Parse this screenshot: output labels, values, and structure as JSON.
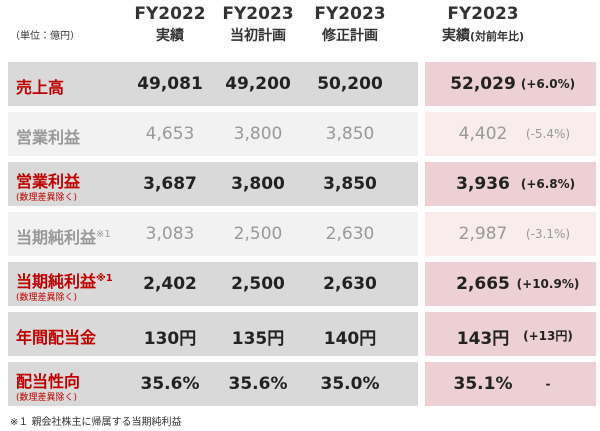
{
  "header": {
    "unit": "（単位：億円）",
    "columns": [
      {
        "line1": "FY2022",
        "line2": "実績"
      },
      {
        "line1": "FY2023",
        "line2": "当初計画"
      },
      {
        "line1": "FY2023",
        "line2": "修正計画"
      },
      {
        "line1": "FY2023",
        "line2": "実績",
        "note": "(対前年比)"
      }
    ]
  },
  "table": {
    "rows": [
      {
        "label": "売上高",
        "emphasis": true,
        "cells": [
          "49,081",
          "49,200",
          "50,200",
          "52,029"
        ],
        "change": "(+6.0%)"
      },
      {
        "label": "営業利益",
        "emphasis": false,
        "cells": [
          "4,653",
          "3,800",
          "3,850",
          "4,402"
        ],
        "change": "(-5.4%)"
      },
      {
        "label": "営業利益",
        "sub": "(数理差異除く)",
        "emphasis": true,
        "cells": [
          "3,687",
          "3,800",
          "3,850",
          "3,936"
        ],
        "change": "(+6.8%)"
      },
      {
        "label": "当期純利益",
        "mark": "※1",
        "emphasis": false,
        "cells": [
          "3,083",
          "2,500",
          "2,630",
          "2,987"
        ],
        "change": "(-3.1%)"
      },
      {
        "label": "当期純利益",
        "mark": "※1",
        "sub": "(数理差異除く)",
        "emphasis": true,
        "cells": [
          "2,402",
          "2,500",
          "2,630",
          "2,665"
        ],
        "change": "(+10.9%)"
      },
      {
        "label": "年間配当金",
        "emphasis": true,
        "cells": [
          "130円",
          "135円",
          "140円",
          "143円"
        ],
        "change": "(+13円)"
      },
      {
        "label": "配当性向",
        "sub": "(数理差異除く)",
        "emphasis": true,
        "cells": [
          "35.6%",
          "35.6%",
          "35.0%",
          "35.1%"
        ],
        "change": "-"
      }
    ]
  },
  "footnote": "※１ 親会社株主に帰属する当期純利益"
}
